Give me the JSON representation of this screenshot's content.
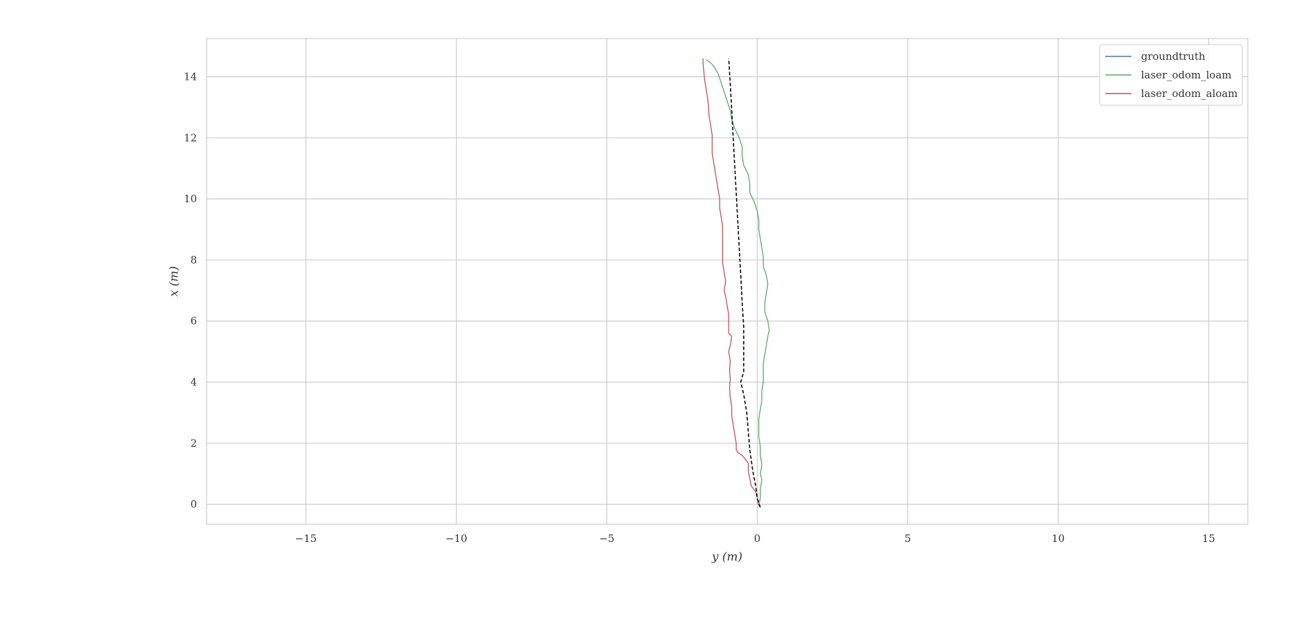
{
  "chart_data": {
    "type": "line",
    "title": "",
    "xlabel": "y (m)",
    "ylabel": "x (m)",
    "xlim": [
      -18.3,
      16.3
    ],
    "ylim": [
      -0.65,
      15.25
    ],
    "xticks": [
      -15,
      -10,
      -5,
      0,
      5,
      10,
      15
    ],
    "xtick_labels": [
      "−15",
      "−10",
      "−5",
      "0",
      "5",
      "10",
      "15"
    ],
    "yticks": [
      0,
      2,
      4,
      6,
      8,
      10,
      12,
      14
    ],
    "ytick_labels": [
      "0",
      "2",
      "4",
      "6",
      "8",
      "10",
      "12",
      "14"
    ],
    "grid": true,
    "legend_position": "top-right",
    "legend": [
      {
        "label": "groundtruth",
        "color": "#4c72b0"
      },
      {
        "label": "laser_odom_loam",
        "color": "#55a868"
      },
      {
        "label": "laser_odom_aloam",
        "color": "#c44e52"
      }
    ],
    "series": [
      {
        "name": "laser_odom_aloam",
        "color": "#c44e52",
        "style": "solid",
        "points": [
          [
            0.05,
            -0.05
          ],
          [
            0.0,
            0.2
          ],
          [
            -0.05,
            0.4
          ],
          [
            -0.2,
            0.6
          ],
          [
            -0.25,
            0.85
          ],
          [
            -0.3,
            1.1
          ],
          [
            -0.3,
            1.35
          ],
          [
            -0.5,
            1.6
          ],
          [
            -0.65,
            1.7
          ],
          [
            -0.7,
            1.8
          ],
          [
            -0.7,
            2.0
          ],
          [
            -0.75,
            2.3
          ],
          [
            -0.8,
            2.6
          ],
          [
            -0.85,
            2.9
          ],
          [
            -0.85,
            3.2
          ],
          [
            -0.9,
            3.5
          ],
          [
            -0.92,
            3.8
          ],
          [
            -0.9,
            4.1
          ],
          [
            -0.92,
            4.4
          ],
          [
            -0.9,
            4.7
          ],
          [
            -0.95,
            5.0
          ],
          [
            -0.9,
            5.2
          ],
          [
            -0.85,
            5.5
          ],
          [
            -0.95,
            5.6
          ],
          [
            -0.95,
            5.9
          ],
          [
            -0.95,
            6.2
          ],
          [
            -1.0,
            6.5
          ],
          [
            -1.05,
            6.8
          ],
          [
            -1.1,
            7.0
          ],
          [
            -1.05,
            7.3
          ],
          [
            -1.1,
            7.6
          ],
          [
            -1.15,
            7.9
          ],
          [
            -1.15,
            8.2
          ],
          [
            -1.15,
            8.5
          ],
          [
            -1.15,
            8.8
          ],
          [
            -1.15,
            9.1
          ],
          [
            -1.2,
            9.4
          ],
          [
            -1.25,
            9.7
          ],
          [
            -1.25,
            10.0
          ],
          [
            -1.3,
            10.3
          ],
          [
            -1.35,
            10.6
          ],
          [
            -1.4,
            10.9
          ],
          [
            -1.45,
            11.2
          ],
          [
            -1.5,
            11.5
          ],
          [
            -1.5,
            11.8
          ],
          [
            -1.5,
            12.1
          ],
          [
            -1.55,
            12.4
          ],
          [
            -1.6,
            12.7
          ],
          [
            -1.62,
            13.0
          ],
          [
            -1.65,
            13.3
          ],
          [
            -1.7,
            13.6
          ],
          [
            -1.75,
            13.9
          ],
          [
            -1.78,
            14.2
          ],
          [
            -1.8,
            14.45
          ],
          [
            -1.8,
            14.6
          ]
        ]
      },
      {
        "name": "laser_odom_loam",
        "color": "#55a868",
        "style": "solid",
        "points": [
          [
            0.05,
            -0.05
          ],
          [
            0.1,
            0.2
          ],
          [
            0.1,
            0.5
          ],
          [
            0.15,
            0.8
          ],
          [
            0.1,
            1.0
          ],
          [
            0.15,
            1.3
          ],
          [
            0.1,
            1.6
          ],
          [
            0.1,
            1.9
          ],
          [
            0.05,
            2.2
          ],
          [
            0.05,
            2.5
          ],
          [
            0.05,
            2.8
          ],
          [
            0.1,
            3.1
          ],
          [
            0.15,
            3.4
          ],
          [
            0.15,
            3.7
          ],
          [
            0.2,
            4.0
          ],
          [
            0.2,
            4.3
          ],
          [
            0.2,
            4.6
          ],
          [
            0.25,
            4.9
          ],
          [
            0.3,
            5.2
          ],
          [
            0.35,
            5.5
          ],
          [
            0.4,
            5.7
          ],
          [
            0.35,
            6.0
          ],
          [
            0.25,
            6.3
          ],
          [
            0.25,
            6.6
          ],
          [
            0.3,
            6.9
          ],
          [
            0.35,
            7.2
          ],
          [
            0.3,
            7.5
          ],
          [
            0.2,
            7.8
          ],
          [
            0.2,
            8.1
          ],
          [
            0.15,
            8.4
          ],
          [
            0.1,
            8.7
          ],
          [
            0.05,
            9.0
          ],
          [
            0.05,
            9.3
          ],
          [
            0.0,
            9.6
          ],
          [
            -0.1,
            9.9
          ],
          [
            -0.25,
            10.2
          ],
          [
            -0.25,
            10.5
          ],
          [
            -0.3,
            10.8
          ],
          [
            -0.45,
            11.1
          ],
          [
            -0.5,
            11.4
          ],
          [
            -0.5,
            11.7
          ],
          [
            -0.6,
            12.0
          ],
          [
            -0.75,
            12.3
          ],
          [
            -0.85,
            12.6
          ],
          [
            -0.9,
            12.9
          ],
          [
            -1.0,
            13.2
          ],
          [
            -1.1,
            13.5
          ],
          [
            -1.2,
            13.8
          ],
          [
            -1.3,
            14.1
          ],
          [
            -1.45,
            14.35
          ],
          [
            -1.6,
            14.5
          ],
          [
            -1.7,
            14.55
          ]
        ]
      },
      {
        "name": "",
        "color": "#000000",
        "style": "dashed",
        "points": [
          [
            0.1,
            -0.1
          ],
          [
            0.0,
            0.2
          ],
          [
            -0.05,
            0.6
          ],
          [
            -0.15,
            1.1
          ],
          [
            -0.25,
            1.8
          ],
          [
            -0.3,
            2.4
          ],
          [
            -0.35,
            3.0
          ],
          [
            -0.45,
            3.6
          ],
          [
            -0.55,
            4.0
          ],
          [
            -0.45,
            4.35
          ],
          [
            -0.45,
            5.0
          ],
          [
            -0.45,
            5.8
          ],
          [
            -0.5,
            6.6
          ],
          [
            -0.55,
            7.5
          ],
          [
            -0.6,
            8.4
          ],
          [
            -0.65,
            9.3
          ],
          [
            -0.7,
            10.2
          ],
          [
            -0.75,
            11.1
          ],
          [
            -0.8,
            12.0
          ],
          [
            -0.85,
            12.9
          ],
          [
            -0.9,
            13.8
          ],
          [
            -0.95,
            14.6
          ]
        ]
      }
    ]
  }
}
